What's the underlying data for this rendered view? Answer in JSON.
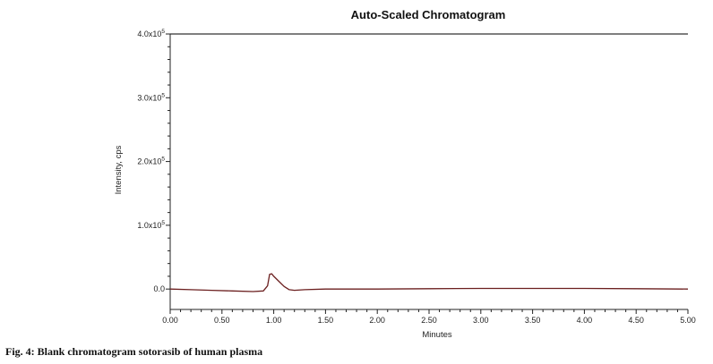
{
  "chart_data": {
    "type": "line",
    "title": "Auto-Scaled Chromatogram",
    "xlabel": "Minutes",
    "ylabel": "Intensity, cps",
    "xlim": [
      0,
      5
    ],
    "ylim": [
      -3.2,
      40
    ],
    "x_ticks": [
      {
        "value": 0,
        "label": "0.00"
      },
      {
        "value": 0.5,
        "label": "0.50"
      },
      {
        "value": 1.0,
        "label": "1.00"
      },
      {
        "value": 1.5,
        "label": "1.50"
      },
      {
        "value": 2.0,
        "label": "2.00"
      },
      {
        "value": 2.5,
        "label": "2.50"
      },
      {
        "value": 3.0,
        "label": "3.00"
      },
      {
        "value": 3.5,
        "label": "3.50"
      },
      {
        "value": 4.0,
        "label": "4.00"
      },
      {
        "value": 4.5,
        "label": "4.50"
      },
      {
        "value": 5.0,
        "label": "5.00"
      }
    ],
    "y_ticks": [
      {
        "value": 0,
        "mantissa": "0.0",
        "exponent": ""
      },
      {
        "value": 10,
        "mantissa": "1.0x10",
        "exponent": "5"
      },
      {
        "value": 20,
        "mantissa": "2.0x10",
        "exponent": "5"
      },
      {
        "value": 30,
        "mantissa": "3.0x10",
        "exponent": "5"
      },
      {
        "value": 40,
        "mantissa": "4.0x10",
        "exponent": "5"
      }
    ],
    "series": [
      {
        "color": "#6b1f1f",
        "x": [
          0,
          0.2,
          0.4,
          0.6,
          0.8,
          0.9,
          0.94,
          0.96,
          0.98,
          1.0,
          1.05,
          1.1,
          1.15,
          1.2,
          1.3,
          1.5,
          2.0,
          2.5,
          3.0,
          3.5,
          4.0,
          4.5,
          5.0
        ],
        "y": [
          0.0,
          -0.1,
          -0.2,
          -0.3,
          -0.4,
          -0.3,
          0.5,
          2.3,
          2.4,
          2.0,
          1.2,
          0.4,
          -0.1,
          -0.2,
          -0.1,
          0.0,
          0.0,
          0.05,
          0.1,
          0.1,
          0.1,
          0.05,
          0.0
        ]
      }
    ],
    "grid": false
  },
  "caption": "Fig. 4: Blank chromatogram sotorasib of human plasma",
  "colors": {
    "axis": "#222222",
    "top_border": "#555555",
    "trace": "#6b1f1f"
  }
}
